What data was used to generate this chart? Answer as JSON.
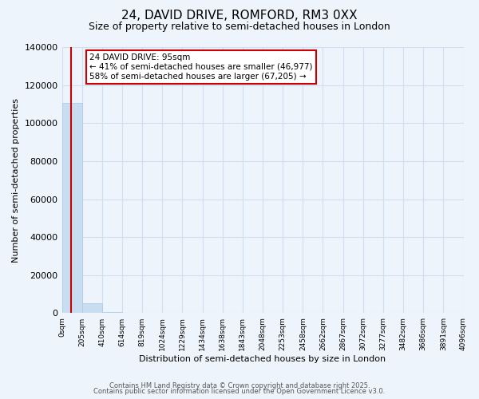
{
  "title": "24, DAVID DRIVE, ROMFORD, RM3 0XX",
  "subtitle": "Size of property relative to semi-detached houses in London",
  "xlabel": "Distribution of semi-detached houses by size in London",
  "ylabel": "Number of semi-detached properties",
  "property_size": 95,
  "pct_smaller": 41,
  "pct_larger": 58,
  "n_smaller": 46977,
  "n_larger": 67205,
  "annotation_line1": "24 DAVID DRIVE: 95sqm",
  "annotation_line2": "← 41% of semi-detached houses are smaller (46,977)",
  "annotation_line3": "58% of semi-detached houses are larger (67,205) →",
  "bar_color": "#c9ddf0",
  "bar_edge_color": "#a8c8e8",
  "red_line_color": "#cc0000",
  "background_color": "#eef4fc",
  "grid_color": "#d0dff0",
  "bin_edges": [
    0,
    205,
    410,
    614,
    819,
    1024,
    1229,
    1434,
    1638,
    1843,
    2048,
    2253,
    2458,
    2662,
    2867,
    3072,
    3277,
    3482,
    3686,
    3891,
    4096
  ],
  "bin_labels": [
    "0sqm",
    "205sqm",
    "410sqm",
    "614sqm",
    "819sqm",
    "1024sqm",
    "1229sqm",
    "1434sqm",
    "1638sqm",
    "1843sqm",
    "2048sqm",
    "2253sqm",
    "2458sqm",
    "2662sqm",
    "2867sqm",
    "3072sqm",
    "3277sqm",
    "3482sqm",
    "3686sqm",
    "3891sqm",
    "4096sqm"
  ],
  "bar_heights": [
    110500,
    5200,
    500,
    100,
    50,
    30,
    20,
    15,
    10,
    8,
    6,
    5,
    4,
    3,
    2,
    2,
    1,
    1,
    1,
    1
  ],
  "ylim": [
    0,
    140000
  ],
  "yticks": [
    0,
    20000,
    40000,
    60000,
    80000,
    100000,
    120000,
    140000
  ],
  "footer1": "Contains HM Land Registry data © Crown copyright and database right 2025.",
  "footer2": "Contains public sector information licensed under the Open Government Licence v3.0.",
  "box_face_color": "#ffffff",
  "box_edge_color": "#cc0000",
  "title_fontsize": 11,
  "subtitle_fontsize": 9
}
